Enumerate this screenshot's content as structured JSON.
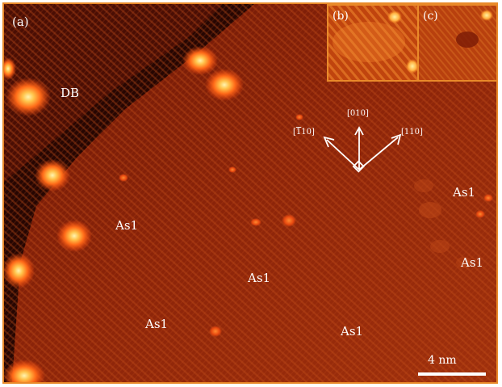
{
  "figure": {
    "panel_a_label": "(a)",
    "panel_b_label": "(b)",
    "panel_c_label": "(c)",
    "feature_labels": {
      "db": "DB",
      "as1_a": "As1",
      "as1_b": "As1",
      "as1_c": "As1",
      "as1_d": "As1",
      "as1_e": "As1",
      "as1_f": "As1"
    },
    "directions": {
      "up": "[010]",
      "left_prefix": "[",
      "left_bar": "1",
      "left_suffix": "10]",
      "right": "[110]"
    },
    "scale_bar_label": "4 nm",
    "colors": {
      "frame": "#e98a2a",
      "dark_step": "#2a0602",
      "terrace": "#8a2208",
      "bright_feature": "#ffd070"
    }
  }
}
